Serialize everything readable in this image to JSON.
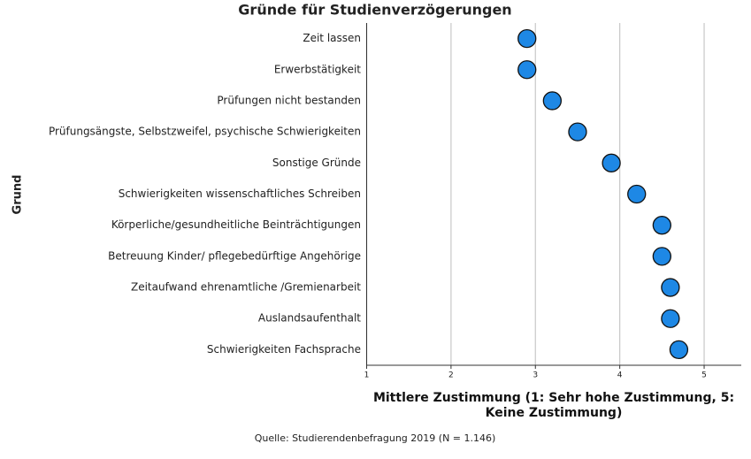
{
  "chart_data": {
    "type": "dot",
    "title": "Gründe für Studienverzögerungen",
    "y_label": "Grund",
    "x_label": "Mittlere Zustimmung (1: Sehr hohe Zustimmung, 5: Keine Zustimmung)",
    "source": "Quelle: Studierendenbefragung 2019 (N = 1.146)",
    "categories": [
      "Zeit lassen",
      "Erwerbstätigkeit",
      "Prüfungen nicht bestanden",
      "Prüfungsängste, Selbstzweifel, psychische Schwierigkeiten",
      "Sonstige Gründe",
      "Schwierigkeiten wissenschaftliches Schreiben",
      "Körperliche/gesundheitliche Beinträchtigungen",
      "Betreuung Kinder/ pflegebedürftige Angehörige",
      "Zeitaufwand ehrenamtliche /Gremienarbeit",
      "Auslandsaufenthalt",
      "Schwierigkeiten Fachsprache"
    ],
    "values": [
      2.9,
      2.9,
      3.2,
      3.5,
      3.9,
      4.2,
      4.5,
      4.5,
      4.6,
      4.6,
      4.7
    ],
    "color": "#1e88e5",
    "xlim": [
      1,
      5.44
    ],
    "xticks": [
      1,
      2,
      3,
      4,
      5
    ],
    "grid": true
  }
}
